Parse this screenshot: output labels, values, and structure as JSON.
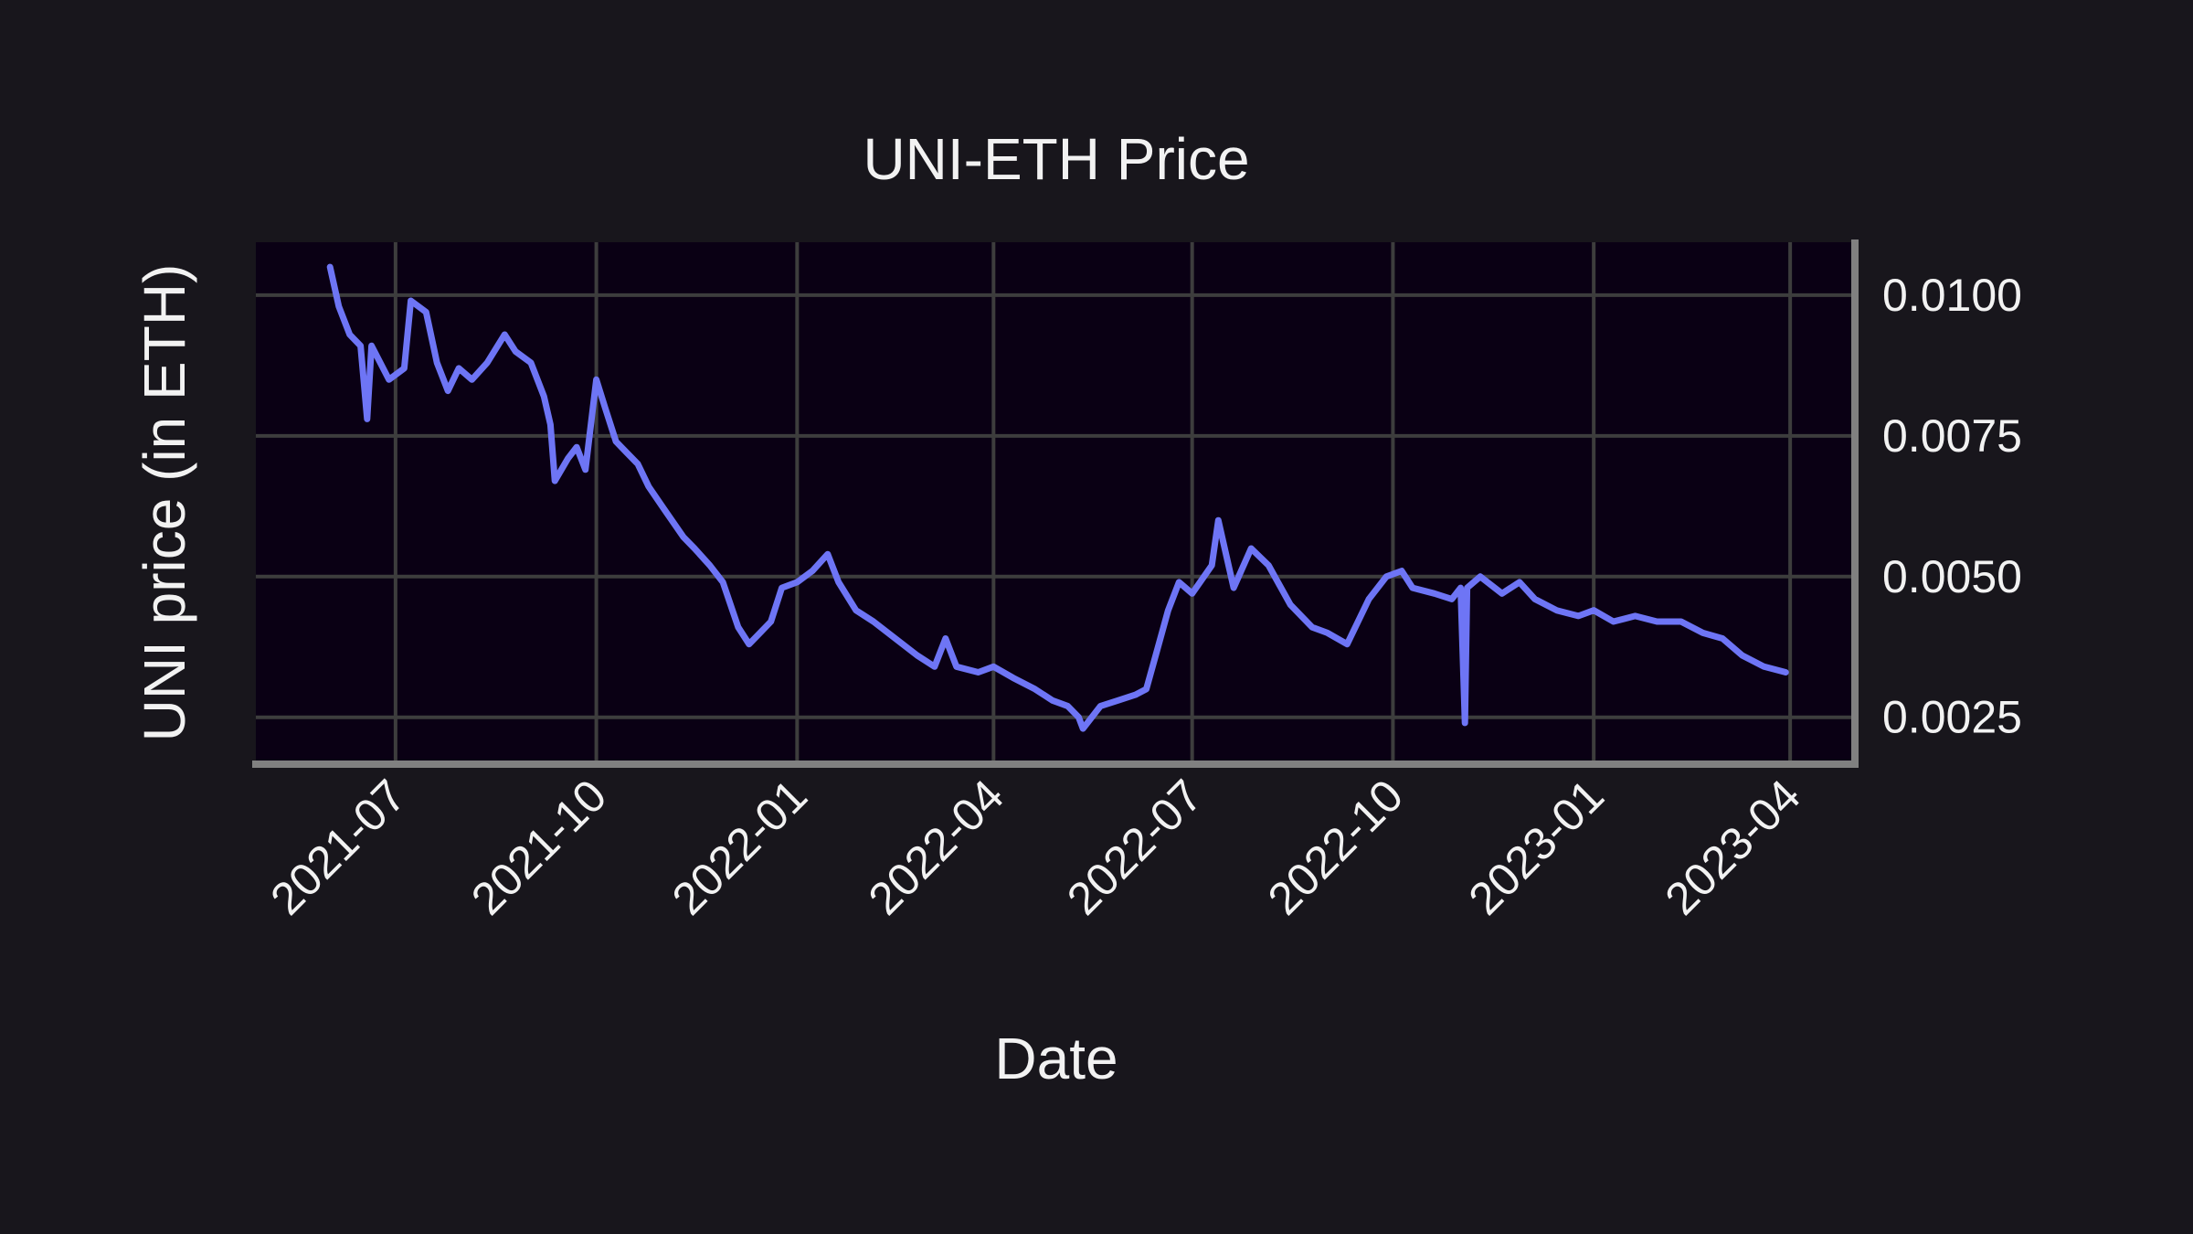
{
  "chart_data": {
    "type": "line",
    "title": "UNI-ETH Price",
    "xlabel": "Date",
    "ylabel": "UNI price (in ETH)",
    "xlim": [
      "2021-04-28",
      "2023-04-29"
    ],
    "ylim": [
      0.0017,
      0.01094
    ],
    "x_ticks": [
      "2021-07",
      "2021-10",
      "2022-01",
      "2022-04",
      "2022-07",
      "2022-10",
      "2023-01",
      "2023-04"
    ],
    "x_tick_dates": [
      "2021-07-01",
      "2021-10-01",
      "2022-01-01",
      "2022-04-01",
      "2022-07-01",
      "2022-10-01",
      "2023-01-01",
      "2023-04-01"
    ],
    "y_ticks": [
      0.0025,
      0.005,
      0.0075,
      0.01
    ],
    "y_tick_labels": [
      "0.0025",
      "0.0050",
      "0.0075",
      "0.0100"
    ],
    "y_axis_side": "right",
    "grid": true,
    "colors": {
      "line": "#6e75f5",
      "background": "#18161c",
      "plot_background": "#0a0014",
      "grid": "#3d3d3d",
      "spine": "#808080"
    },
    "series": [
      {
        "x": [
          "2021-06-01",
          "2021-06-05",
          "2021-06-10",
          "2021-06-15",
          "2021-06-18",
          "2021-06-20",
          "2021-06-28",
          "2021-07-05",
          "2021-07-08",
          "2021-07-15",
          "2021-07-20",
          "2021-07-25",
          "2021-07-30",
          "2021-08-05",
          "2021-08-12",
          "2021-08-20",
          "2021-08-25",
          "2021-09-01",
          "2021-09-07",
          "2021-09-10",
          "2021-09-12",
          "2021-09-18",
          "2021-09-22",
          "2021-09-26",
          "2021-10-01",
          "2021-10-05",
          "2021-10-10",
          "2021-10-15",
          "2021-10-20",
          "2021-10-25",
          "2021-11-01",
          "2021-11-10",
          "2021-11-15",
          "2021-11-22",
          "2021-11-28",
          "2021-12-05",
          "2021-12-10",
          "2021-12-15",
          "2021-12-20",
          "2021-12-25",
          "2022-01-01",
          "2022-01-08",
          "2022-01-15",
          "2022-01-20",
          "2022-01-28",
          "2022-02-05",
          "2022-02-15",
          "2022-02-25",
          "2022-03-05",
          "2022-03-10",
          "2022-03-15",
          "2022-03-25",
          "2022-04-01",
          "2022-04-10",
          "2022-04-20",
          "2022-04-28",
          "2022-05-05",
          "2022-05-10",
          "2022-05-12",
          "2022-05-20",
          "2022-05-28",
          "2022-06-05",
          "2022-06-10",
          "2022-06-15",
          "2022-06-20",
          "2022-06-25",
          "2022-07-01",
          "2022-07-10",
          "2022-07-13",
          "2022-07-20",
          "2022-07-28",
          "2022-08-05",
          "2022-08-15",
          "2022-08-25",
          "2022-09-01",
          "2022-09-10",
          "2022-09-20",
          "2022-09-28",
          "2022-10-05",
          "2022-10-10",
          "2022-10-20",
          "2022-10-28",
          "2022-11-01",
          "2022-11-03",
          "2022-11-04",
          "2022-11-10",
          "2022-11-20",
          "2022-11-28",
          "2022-12-05",
          "2022-12-15",
          "2022-12-25",
          "2023-01-01",
          "2023-01-10",
          "2023-01-20",
          "2023-01-30",
          "2023-02-10",
          "2023-02-20",
          "2023-03-01",
          "2023-03-10",
          "2023-03-20",
          "2023-03-30"
        ],
        "y": [
          0.0105,
          0.0098,
          0.0093,
          0.0091,
          0.0078,
          0.0091,
          0.0085,
          0.0087,
          0.0099,
          0.0097,
          0.0088,
          0.0083,
          0.0087,
          0.0085,
          0.0088,
          0.0093,
          0.009,
          0.0088,
          0.0082,
          0.0077,
          0.0067,
          0.0071,
          0.0073,
          0.0069,
          0.0085,
          0.008,
          0.0074,
          0.0072,
          0.007,
          0.0066,
          0.0062,
          0.0057,
          0.0055,
          0.0052,
          0.0049,
          0.0041,
          0.0038,
          0.004,
          0.0042,
          0.0048,
          0.0049,
          0.0051,
          0.0054,
          0.0049,
          0.0044,
          0.0042,
          0.0039,
          0.0036,
          0.0034,
          0.0039,
          0.0034,
          0.0033,
          0.0034,
          0.0032,
          0.003,
          0.0028,
          0.0027,
          0.0025,
          0.0023,
          0.0027,
          0.0028,
          0.0029,
          0.003,
          0.0037,
          0.0044,
          0.0049,
          0.0047,
          0.0052,
          0.006,
          0.0048,
          0.0055,
          0.0052,
          0.0045,
          0.0041,
          0.004,
          0.0038,
          0.0046,
          0.005,
          0.0051,
          0.0048,
          0.0047,
          0.0046,
          0.0048,
          0.0024,
          0.0048,
          0.005,
          0.0047,
          0.0049,
          0.0046,
          0.0044,
          0.0043,
          0.0044,
          0.0042,
          0.0043,
          0.0042,
          0.0042,
          0.004,
          0.0039,
          0.0036,
          0.0034,
          0.0033
        ]
      }
    ]
  }
}
